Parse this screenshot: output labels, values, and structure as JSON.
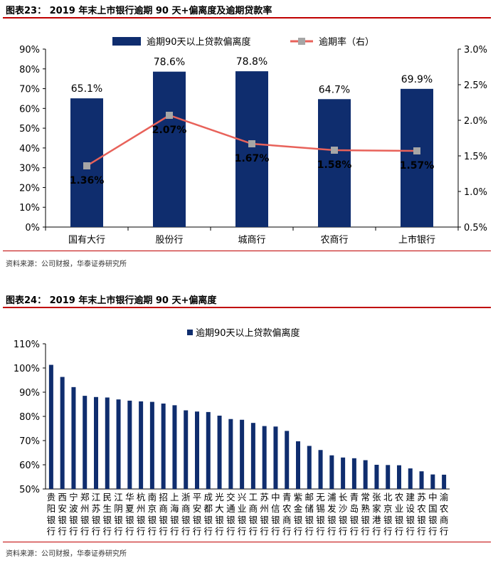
{
  "figure1": {
    "title": "图表23：  2019 年末上市银行逾期 90 天+偏离度及逾期贷款率",
    "source": "资料来源：公司财报，华泰证券研究所"
  },
  "figure2": {
    "title": "图表24：  2019 年末上市银行逾期 90 天+偏离度",
    "source": "资料来源：公司财报，华泰证券研究所"
  },
  "colors": {
    "bar": "#0f2d6e",
    "line": "#e8625a",
    "marker": "#a6a6a6",
    "rule": "#c00000"
  },
  "chart_data": [
    {
      "type": "bar",
      "categories": [
        "国有大行",
        "股份行",
        "城商行",
        "农商行",
        "上市银行"
      ],
      "series": [
        {
          "name": "逾期90天以上贷款偏离度",
          "axis": "left",
          "values": [
            65.1,
            78.6,
            78.8,
            64.7,
            69.9
          ],
          "labels": [
            "65.1%",
            "78.6%",
            "78.8%",
            "64.7%",
            "69.9%"
          ]
        },
        {
          "name": "逾期率（右）",
          "axis": "right",
          "type": "line",
          "values": [
            1.36,
            2.07,
            1.67,
            1.58,
            1.57
          ],
          "labels": [
            "1.36%",
            "2.07%",
            "1.67%",
            "1.58%",
            "1.57%"
          ]
        }
      ],
      "ylim": [
        0,
        90
      ],
      "y2lim": [
        0.5,
        3.0
      ],
      "yticks": [
        "0%",
        "10%",
        "20%",
        "30%",
        "40%",
        "50%",
        "60%",
        "70%",
        "80%",
        "90%"
      ],
      "y2ticks": [
        "0.5%",
        "1.0%",
        "1.5%",
        "2.0%",
        "2.5%",
        "3.0%"
      ],
      "legend": "top-center"
    },
    {
      "type": "bar",
      "categories": [
        "贵阳银行",
        "西安银行",
        "宁波银行",
        "郑州银行",
        "江苏银行",
        "民生银行",
        "江阴银行",
        "华夏银行",
        "杭州银行",
        "南京银行",
        "招商银行",
        "上海银行",
        "浙商银行",
        "平安银行",
        "成都银行",
        "光大银行",
        "交通银行",
        "兴业银行",
        "工商银行",
        "苏州银行",
        "中信银行",
        "青农商行",
        "紫金银行",
        "邮储银行",
        "无锡银行",
        "浦发银行",
        "长沙银行",
        "青岛银行",
        "常熟银行",
        "张家港行",
        "北京银行",
        "农业银行",
        "建设银行",
        "苏农银行",
        "中国银行",
        "渝农商行"
      ],
      "series": [
        {
          "name": "逾期90天以上贷款偏离度",
          "values": [
            101.3,
            96.3,
            92.1,
            88.5,
            88.0,
            87.8,
            87.0,
            86.5,
            86.2,
            86.0,
            85.3,
            84.6,
            82.5,
            82.0,
            81.8,
            80.3,
            78.9,
            78.6,
            77.3,
            76.0,
            75.8,
            74.0,
            69.7,
            67.8,
            66.1,
            63.9,
            63.0,
            62.7,
            61.9,
            60.0,
            59.9,
            59.8,
            58.5,
            57.3,
            56.0,
            55.9
          ]
        }
      ],
      "ylim": [
        50,
        110
      ],
      "yticks": [
        "50%",
        "60%",
        "70%",
        "80%",
        "90%",
        "100%",
        "110%"
      ],
      "legend": "top-center"
    }
  ]
}
